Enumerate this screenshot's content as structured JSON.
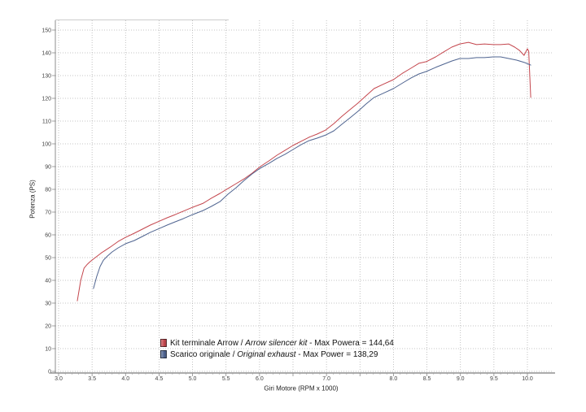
{
  "chart_data": {
    "type": "line",
    "xlabel": "Giri Motore (RPM x 1000)",
    "ylabel": "Potenza (PS)",
    "xlim": [
      3.0,
      10.0
    ],
    "ylim": [
      0,
      150
    ],
    "x_ticks": [
      3.0,
      3.5,
      4.0,
      4.5,
      5.0,
      5.5,
      6.0,
      6.5,
      7.0,
      7.5,
      8.0,
      8.5,
      9.0,
      9.5,
      10.0
    ],
    "x_tick_labels": [
      "3.0",
      "3.5",
      "4.0",
      "4.5",
      "5.0",
      "5.5",
      "6.0",
      "",
      "7.0",
      "",
      "8.0",
      "8.5",
      "9.0",
      "9.5",
      "10.0"
    ],
    "y_ticks": [
      0,
      10,
      20,
      30,
      40,
      50,
      60,
      70,
      80,
      90,
      100,
      110,
      120,
      130,
      140,
      150
    ],
    "y_tick_labels": [
      "0",
      "10",
      "20",
      "30",
      "40",
      "50",
      "60",
      "70",
      "80",
      "90",
      "100",
      "110",
      "120",
      "130",
      "140",
      "150"
    ],
    "grid": true,
    "legend_position": "bottom-left",
    "series": [
      {
        "name_parts": [
          "Kit terminale Arrow / ",
          "Arrow silencer kit",
          " - Max Powera = 144,64"
        ],
        "color": "#c4464d",
        "x": [
          3.28,
          3.33,
          3.38,
          3.43,
          3.47,
          3.53,
          3.64,
          3.77,
          3.89,
          4.0,
          4.13,
          4.25,
          4.37,
          4.51,
          4.62,
          4.74,
          4.86,
          5.0,
          5.16,
          5.28,
          5.41,
          5.53,
          5.65,
          5.77,
          5.89,
          6.01,
          6.14,
          6.26,
          6.38,
          6.5,
          6.62,
          6.74,
          6.86,
          6.99,
          7.11,
          7.23,
          7.35,
          7.47,
          7.59,
          7.71,
          7.84,
          8.0,
          8.14,
          8.26,
          8.38,
          8.49,
          8.63,
          8.75,
          8.87,
          8.99,
          9.12,
          9.24,
          9.36,
          9.49,
          9.6,
          9.72,
          9.81,
          9.88,
          9.95,
          10.0,
          10.02,
          10.05
        ],
        "y": [
          31.0,
          40.0,
          45.4,
          47.1,
          48.2,
          49.6,
          52.1,
          54.6,
          57.1,
          58.9,
          60.7,
          62.5,
          64.3,
          66.1,
          67.5,
          68.9,
          70.4,
          72.1,
          73.9,
          76.1,
          78.2,
          80.4,
          82.5,
          84.6,
          87.1,
          90.0,
          92.5,
          95.0,
          97.1,
          99.3,
          101.1,
          102.9,
          104.3,
          106.1,
          108.9,
          112.1,
          115.0,
          117.9,
          121.1,
          124.3,
          126.1,
          128.2,
          131.1,
          133.2,
          135.4,
          136.1,
          138.2,
          140.4,
          142.5,
          143.9,
          144.6,
          143.6,
          143.9,
          143.6,
          143.6,
          143.9,
          142.5,
          141.1,
          138.9,
          141.8,
          140.7,
          120.4
        ]
      },
      {
        "name_parts": [
          "Scarico originale / ",
          "Original exhaust",
          " - Max Power = 138,29"
        ],
        "color": "#4f6490",
        "x": [
          3.52,
          3.57,
          3.62,
          3.67,
          3.73,
          3.8,
          3.89,
          4.0,
          4.13,
          4.25,
          4.37,
          4.51,
          4.62,
          4.74,
          4.86,
          5.0,
          5.16,
          5.28,
          5.41,
          5.53,
          5.65,
          5.77,
          5.89,
          6.01,
          6.14,
          6.26,
          6.38,
          6.5,
          6.62,
          6.74,
          6.86,
          6.99,
          7.11,
          7.23,
          7.35,
          7.47,
          7.59,
          7.71,
          7.84,
          8.0,
          8.14,
          8.26,
          8.38,
          8.49,
          8.63,
          8.75,
          8.87,
          8.99,
          9.12,
          9.24,
          9.36,
          9.49,
          9.6,
          9.72,
          9.84,
          9.96,
          10.05
        ],
        "y": [
          36.4,
          41.8,
          46.1,
          48.9,
          50.7,
          52.5,
          54.3,
          56.1,
          57.5,
          59.3,
          61.1,
          62.9,
          64.3,
          65.7,
          67.1,
          68.9,
          70.7,
          72.5,
          74.6,
          77.9,
          80.7,
          83.9,
          86.8,
          89.3,
          91.4,
          93.6,
          95.4,
          97.5,
          99.6,
          101.4,
          102.5,
          103.9,
          105.7,
          108.6,
          111.4,
          114.3,
          117.5,
          120.4,
          122.1,
          124.3,
          126.8,
          128.9,
          130.7,
          131.8,
          133.6,
          135.0,
          136.4,
          137.5,
          137.5,
          137.9,
          137.9,
          138.2,
          138.2,
          137.5,
          136.8,
          135.7,
          134.6
        ]
      }
    ]
  }
}
